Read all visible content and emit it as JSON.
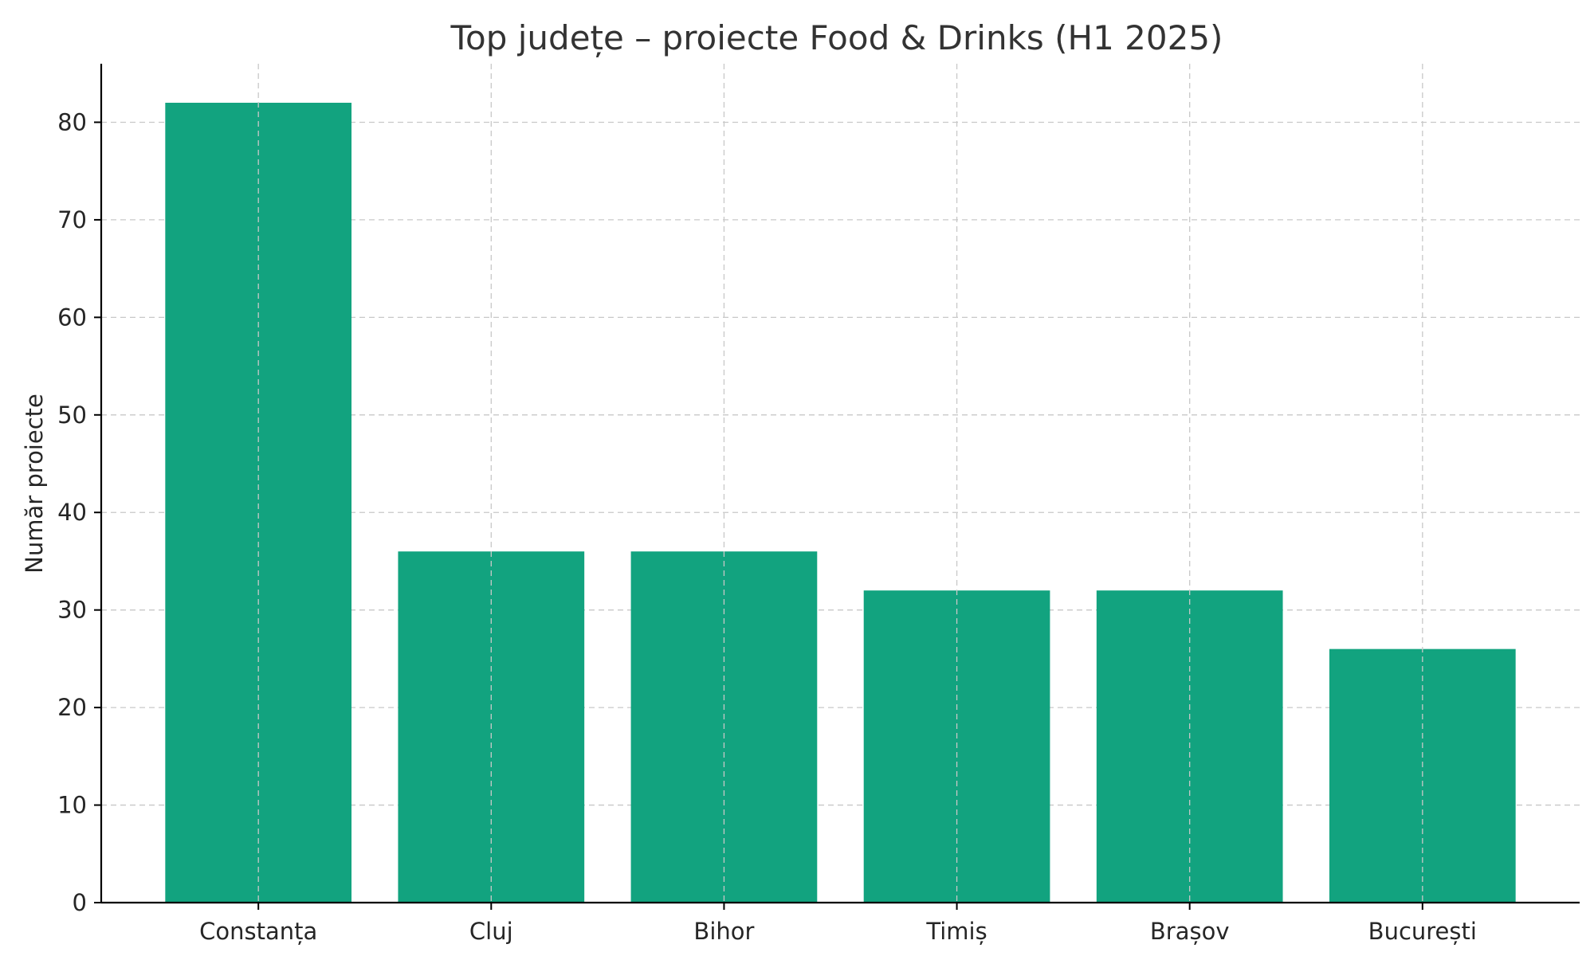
{
  "chart_data": {
    "type": "bar",
    "title": "Top județe – proiecte Food & Drinks (H1 2025)",
    "xlabel": "",
    "ylabel": "Număr proiecte",
    "categories": [
      "Constanța",
      "Cluj",
      "Bihor",
      "Timiș",
      "Brașov",
      "București"
    ],
    "values": [
      82,
      36,
      36,
      32,
      32,
      26
    ],
    "ylim": [
      0,
      86
    ],
    "yticks": [
      0,
      10,
      20,
      30,
      40,
      50,
      60,
      70,
      80
    ],
    "grid": true,
    "bar_color": "#12a37f"
  }
}
